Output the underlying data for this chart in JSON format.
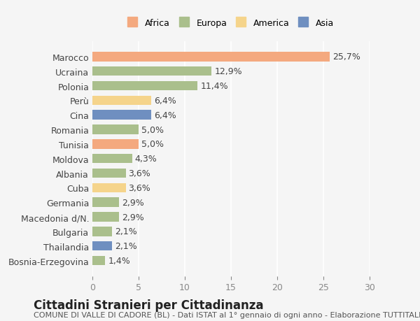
{
  "countries": [
    "Marocco",
    "Ucraina",
    "Polonia",
    "Perù",
    "Cina",
    "Romania",
    "Tunisia",
    "Moldova",
    "Albania",
    "Cuba",
    "Germania",
    "Macedonia d/N.",
    "Bulgaria",
    "Thailandia",
    "Bosnia-Erzegovina"
  ],
  "values": [
    25.7,
    12.9,
    11.4,
    6.4,
    6.4,
    5.0,
    5.0,
    4.3,
    3.6,
    3.6,
    2.9,
    2.9,
    2.1,
    2.1,
    1.4
  ],
  "labels": [
    "25,7%",
    "12,9%",
    "11,4%",
    "6,4%",
    "6,4%",
    "5,0%",
    "5,0%",
    "4,3%",
    "3,6%",
    "3,6%",
    "2,9%",
    "2,9%",
    "2,1%",
    "2,1%",
    "1,4%"
  ],
  "continents": [
    "Africa",
    "Europa",
    "Europa",
    "America",
    "Asia",
    "Europa",
    "Africa",
    "Europa",
    "Europa",
    "America",
    "Europa",
    "Europa",
    "Europa",
    "Asia",
    "Europa"
  ],
  "colors": {
    "Africa": "#F4A97F",
    "Europa": "#AABF8C",
    "America": "#F5D48B",
    "Asia": "#6F8FC0"
  },
  "legend_order": [
    "Africa",
    "Europa",
    "America",
    "Asia"
  ],
  "xlim": [
    0,
    30
  ],
  "xticks": [
    0,
    5,
    10,
    15,
    20,
    25,
    30
  ],
  "title": "Cittadini Stranieri per Cittadinanza",
  "subtitle": "COMUNE DI VALLE DI CADORE (BL) - Dati ISTAT al 1° gennaio di ogni anno - Elaborazione TUTTITALIA.IT",
  "background_color": "#f5f5f5",
  "bar_height": 0.65,
  "label_fontsize": 9,
  "tick_fontsize": 9,
  "title_fontsize": 12,
  "subtitle_fontsize": 8
}
